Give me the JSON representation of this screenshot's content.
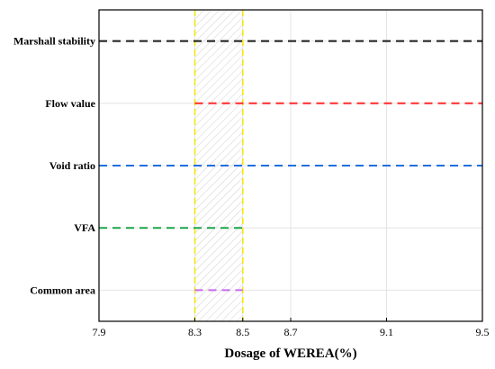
{
  "chart_data": {
    "type": "range",
    "title": "",
    "xlabel": "Dosage of WEREA(%)",
    "ylabel": "",
    "xlim": [
      7.9,
      9.5
    ],
    "x_ticks": [
      7.9,
      8.3,
      8.5,
      8.7,
      9.1,
      9.5
    ],
    "x_tick_labels": [
      "7.9",
      "8.3",
      "8.5",
      "8.7",
      "9.1",
      "9.5"
    ],
    "grid": true,
    "rows": [
      {
        "label": "Marshall stability",
        "x_start": 7.9,
        "x_end": 9.5,
        "color": "#1a1a1a"
      },
      {
        "label": "Flow value",
        "x_start": 8.3,
        "x_end": 9.5,
        "color": "#ff2a2a"
      },
      {
        "label": "Void ratio",
        "x_start": 7.9,
        "x_end": 9.5,
        "color": "#1f6fe0"
      },
      {
        "label": "VFA",
        "x_start": 7.9,
        "x_end": 8.5,
        "color": "#1aa64a"
      },
      {
        "label": "Common area",
        "x_start": 8.3,
        "x_end": 8.5,
        "color": "#c86bf0"
      }
    ],
    "highlight_band": {
      "x_start": 8.3,
      "x_end": 8.5,
      "line_color": "#f5e60a",
      "hatch": true
    }
  }
}
